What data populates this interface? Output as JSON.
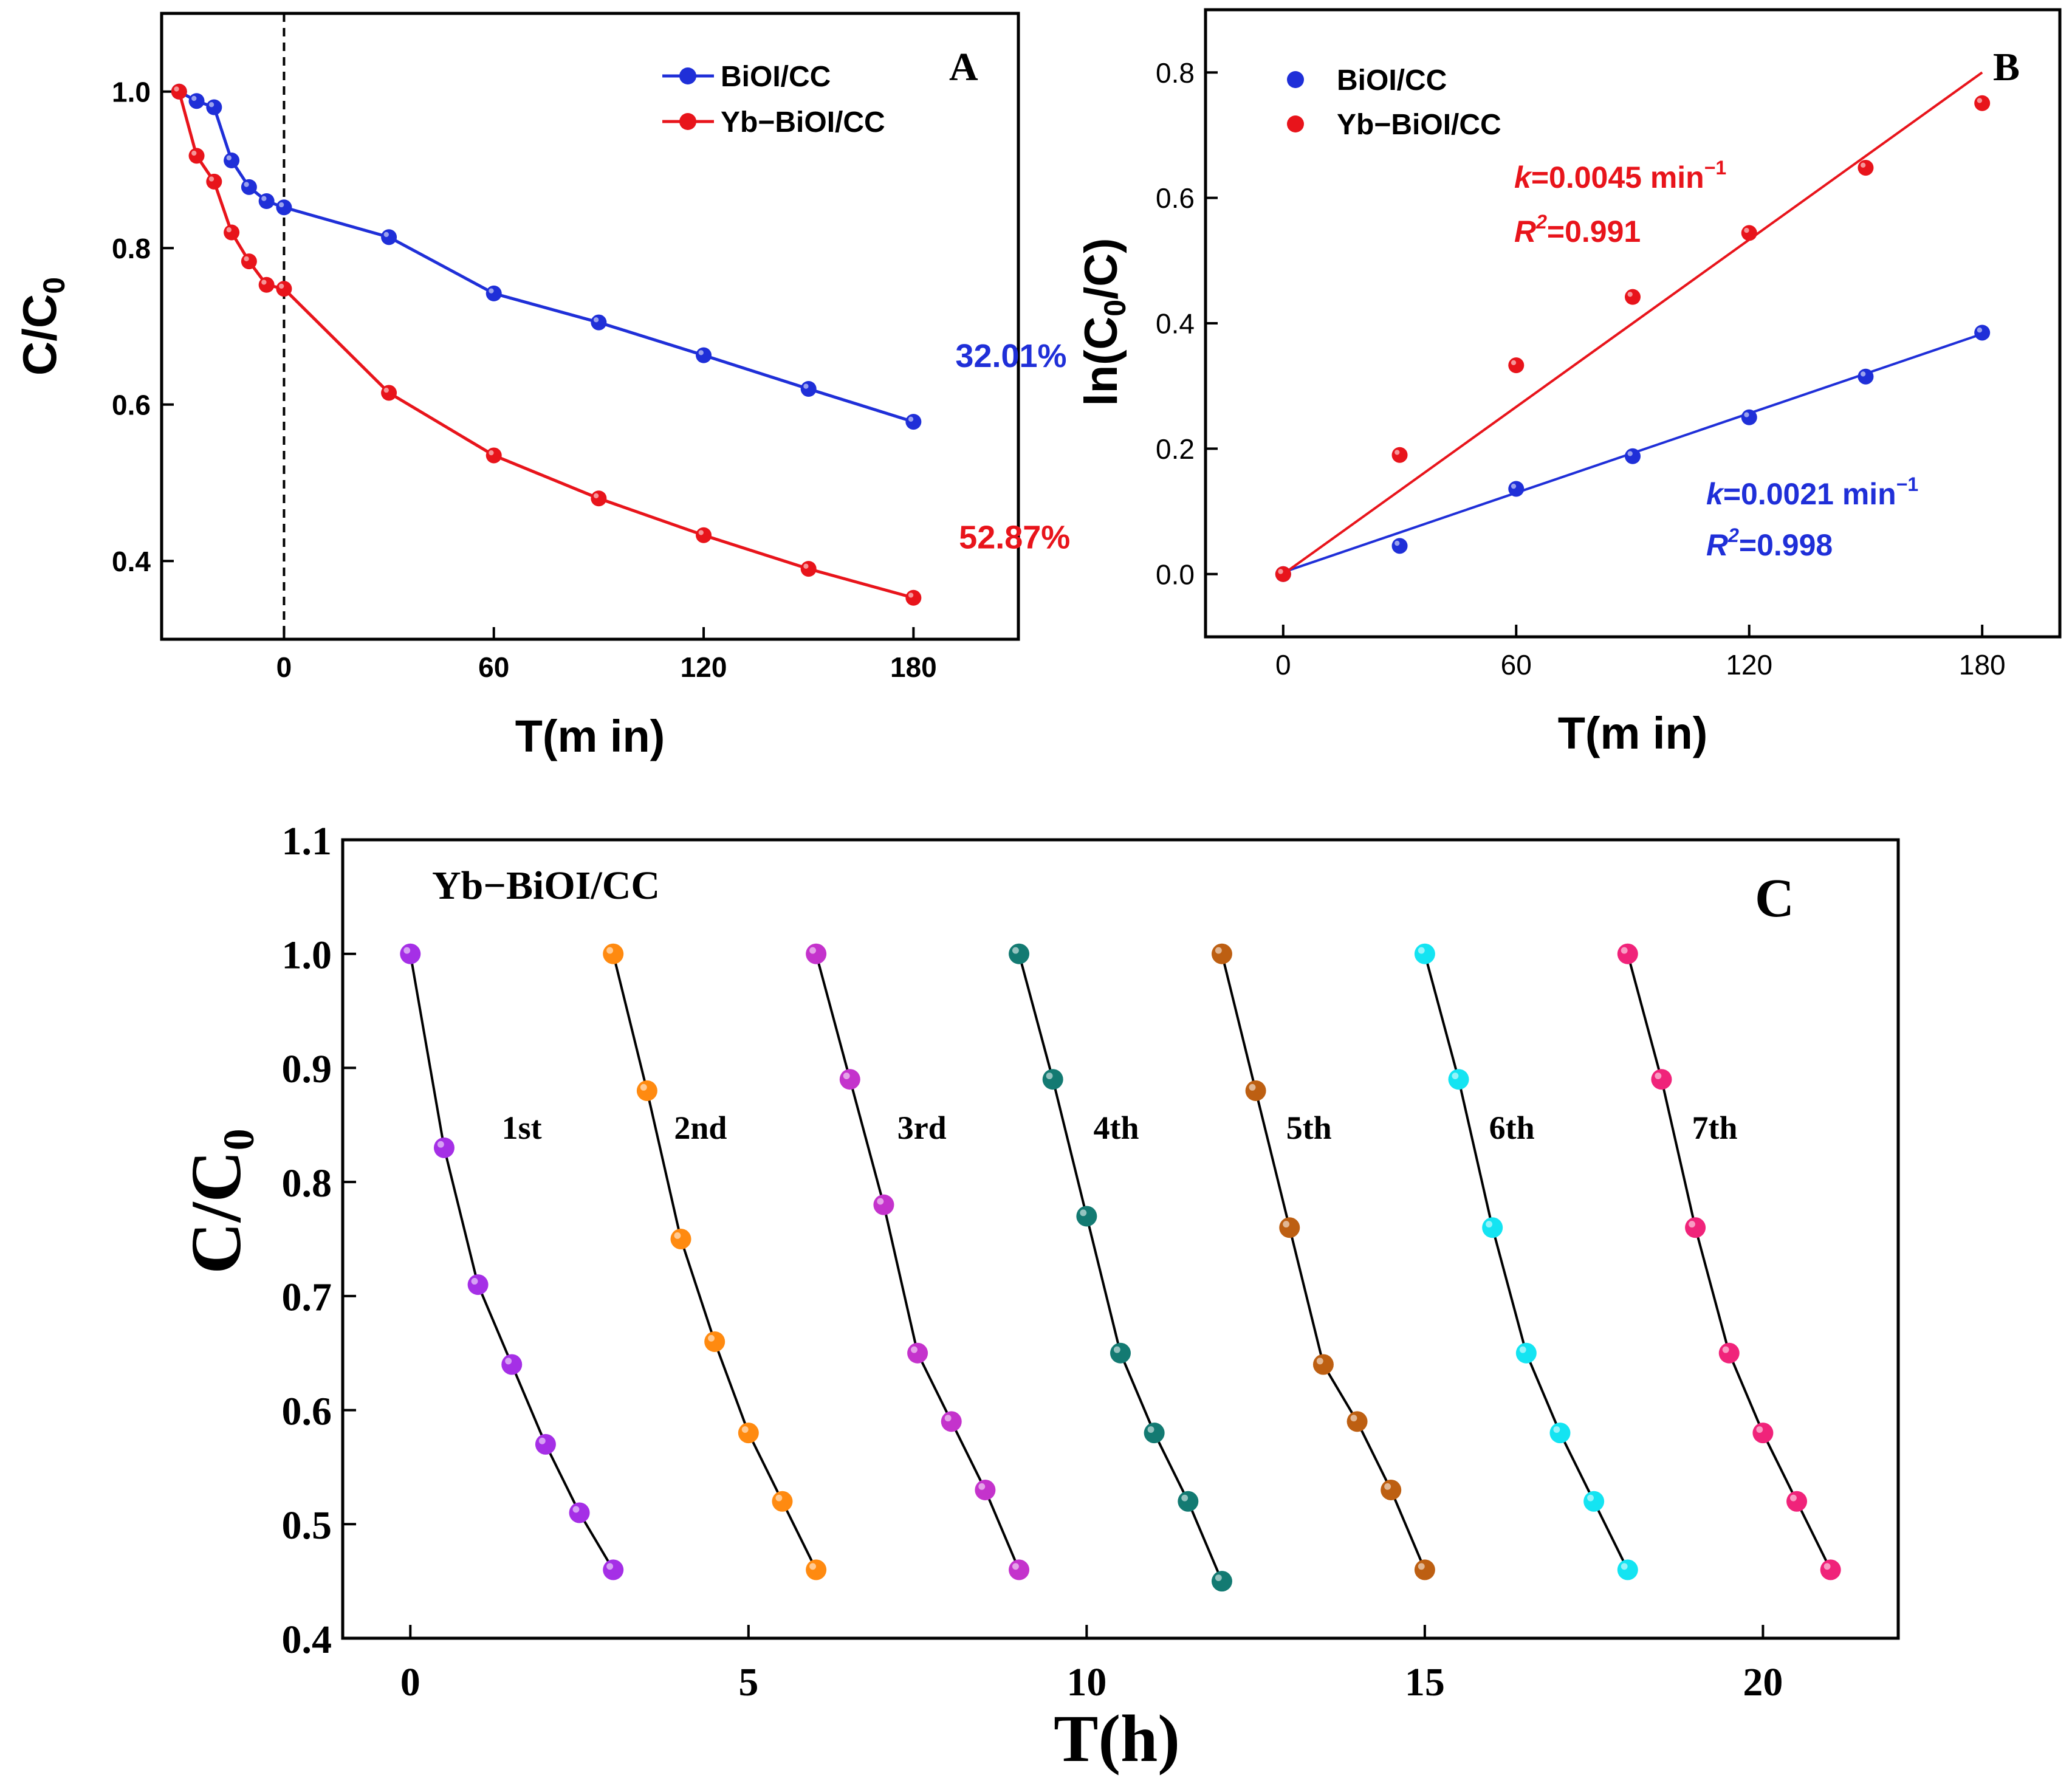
{
  "colors": {
    "blue": "#1f2fd8",
    "red": "#e8141b",
    "axis": "#000000",
    "c_line": "#000000",
    "c_runs": [
      "#a52fe6",
      "#ff8a10",
      "#c433cc",
      "#137a72",
      "#bd5f12",
      "#14e4f2",
      "#f0237a"
    ]
  },
  "chart_data": [
    {
      "panel": "A",
      "type": "line",
      "title": "",
      "xlabel": "T(m in)",
      "ylabel_main": "C/C",
      "ylabel_sub": "0",
      "xlim": [
        -35,
        210
      ],
      "ylim": [
        0.3,
        1.1
      ],
      "x_ticks": [
        0,
        60,
        120,
        180
      ],
      "x_tick_labels": [
        "0",
        "60",
        "120",
        "180"
      ],
      "y_ticks": [
        0.4,
        0.6,
        0.8,
        1.0
      ],
      "y_tick_labels": [
        "0.4",
        "0.6",
        "0.8",
        "1.0"
      ],
      "dashed_vline_x": 0,
      "legend_position": "top-right",
      "series": [
        {
          "name": "BiOI/CC",
          "color": "#1f2fd8",
          "x": [
            -30,
            -25,
            -20,
            -15,
            -10,
            -5,
            0,
            30,
            60,
            90,
            120,
            150,
            180
          ],
          "y": [
            1.0,
            0.988,
            0.98,
            0.912,
            0.878,
            0.86,
            0.852,
            0.814,
            0.742,
            0.705,
            0.663,
            0.62,
            0.578
          ]
        },
        {
          "name": "Yb−BiOI/CC",
          "color": "#e8141b",
          "x": [
            -30,
            -25,
            -20,
            -15,
            -10,
            -5,
            0,
            30,
            60,
            90,
            120,
            150,
            180
          ],
          "y": [
            1.0,
            0.918,
            0.885,
            0.82,
            0.783,
            0.753,
            0.748,
            0.615,
            0.535,
            0.48,
            0.433,
            0.39,
            0.353
          ]
        }
      ],
      "annotations": [
        {
          "text": "32.01%",
          "color": "#1f2fd8",
          "x": 192,
          "y": 0.648
        },
        {
          "text": "52.87%",
          "color": "#e8141b",
          "x": 193,
          "y": 0.416
        }
      ],
      "panel_label": "A"
    },
    {
      "panel": "B",
      "type": "scatter",
      "title": "",
      "xlabel": "T(m in)",
      "ylabel": "ln(C0/C)",
      "ylabel_parts": [
        "ln(C",
        "0",
        "/C)"
      ],
      "xlim": [
        -20,
        200
      ],
      "ylim": [
        -0.1,
        0.9
      ],
      "x_ticks": [
        0,
        60,
        120,
        180
      ],
      "x_tick_labels": [
        "0",
        "60",
        "120",
        "180"
      ],
      "y_ticks": [
        0.0,
        0.2,
        0.4,
        0.6,
        0.8
      ],
      "y_tick_labels": [
        "0.0",
        "0.2",
        "0.4",
        "0.6",
        "0.8"
      ],
      "legend_position": "top-left",
      "series": [
        {
          "name": "BiOI/CC",
          "color": "#1f2fd8",
          "x": [
            0,
            30,
            60,
            90,
            120,
            150,
            180
          ],
          "y": [
            0.0,
            0.045,
            0.136,
            0.188,
            0.25,
            0.315,
            0.385
          ],
          "fit": {
            "k": 0.0021,
            "x0": 0,
            "x1": 180,
            "y0": 0.003,
            "y1": 0.383
          }
        },
        {
          "name": "Yb−BiOI/CC",
          "color": "#e8141b",
          "x": [
            0,
            30,
            60,
            90,
            120,
            150,
            180
          ],
          "y": [
            0.0,
            0.19,
            0.333,
            0.442,
            0.544,
            0.648,
            0.751
          ],
          "fit": {
            "k": 0.0045,
            "x0": 0,
            "x1": 180,
            "y0": 0.0,
            "y1": 0.8
          }
        }
      ],
      "fit_labels": [
        {
          "k_sym": "k",
          "k_text": "=0.0045 min",
          "k_exp": "−1",
          "r_sym": "R",
          "r_exp": "2",
          "r_text": "=0.991",
          "color": "#e8141b"
        },
        {
          "k_sym": "k",
          "k_text": "=0.0021 min",
          "k_exp": "−1",
          "r_sym": "R",
          "r_exp": "2",
          "r_text": "=0.998",
          "color": "#1f2fd8"
        }
      ],
      "panel_label": "B"
    },
    {
      "panel": "C",
      "type": "line",
      "title": "Yb−BiOI/CC",
      "xlabel": "T(h)",
      "ylabel_main": "C/C",
      "ylabel_sub": "0",
      "xlim": [
        -1,
        22
      ],
      "ylim": [
        0.4,
        1.1
      ],
      "x_ticks": [
        0,
        5,
        10,
        15,
        20
      ],
      "x_tick_labels": [
        "0",
        "5",
        "10",
        "15",
        "20"
      ],
      "y_ticks": [
        0.4,
        0.5,
        0.6,
        0.7,
        0.8,
        0.9,
        1.0,
        1.1
      ],
      "y_tick_labels": [
        "0.4",
        "0.5",
        "0.6",
        "0.7",
        "0.8",
        "0.9",
        "1.0",
        "1.1"
      ],
      "series": [
        {
          "name": "1st",
          "label_x": 1.35,
          "label_y": 0.838,
          "x": [
            0,
            0.5,
            1,
            1.5,
            2,
            2.5,
            3
          ],
          "y": [
            1.0,
            0.83,
            0.71,
            0.64,
            0.57,
            0.51,
            0.46
          ]
        },
        {
          "name": "2nd",
          "label_x": 3.9,
          "label_y": 0.838,
          "x": [
            3,
            3.5,
            4,
            4.5,
            5,
            5.5,
            6
          ],
          "y": [
            1.0,
            0.88,
            0.75,
            0.66,
            0.58,
            0.52,
            0.46
          ]
        },
        {
          "name": "3rd",
          "label_x": 7.2,
          "label_y": 0.838,
          "x": [
            6,
            6.5,
            7,
            7.5,
            8,
            8.5,
            9
          ],
          "y": [
            1.0,
            0.89,
            0.78,
            0.65,
            0.59,
            0.53,
            0.46
          ]
        },
        {
          "name": "4th",
          "label_x": 10.1,
          "label_y": 0.838,
          "x": [
            9,
            9.5,
            10,
            10.5,
            11,
            11.5,
            12
          ],
          "y": [
            1.0,
            0.89,
            0.77,
            0.65,
            0.58,
            0.52,
            0.45
          ]
        },
        {
          "name": "5th",
          "label_x": 12.95,
          "label_y": 0.838,
          "x": [
            12,
            12.5,
            13,
            13.5,
            14,
            14.5,
            15
          ],
          "y": [
            1.0,
            0.88,
            0.76,
            0.64,
            0.59,
            0.53,
            0.46
          ]
        },
        {
          "name": "6th",
          "label_x": 15.95,
          "label_y": 0.838,
          "x": [
            15,
            15.5,
            16,
            16.5,
            17,
            17.5,
            18
          ],
          "y": [
            1.0,
            0.89,
            0.76,
            0.65,
            0.58,
            0.52,
            0.46
          ]
        },
        {
          "name": "7th",
          "label_x": 18.95,
          "label_y": 0.838,
          "x": [
            18,
            18.5,
            19,
            19.5,
            20,
            20.5,
            21
          ],
          "y": [
            1.0,
            0.89,
            0.76,
            0.65,
            0.58,
            0.52,
            0.46
          ]
        }
      ],
      "panel_label": "C"
    }
  ]
}
